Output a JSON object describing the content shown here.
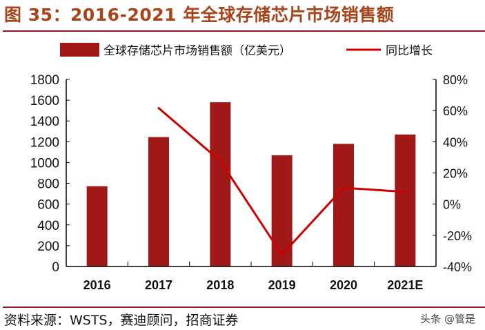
{
  "title": "图 35：2016-2021 年全球存储芯片市场销售额",
  "source": "资料来源：WSTS，赛迪顾问，招商证券",
  "watermark": "头条 @管是",
  "colors": {
    "bar": "#a01818",
    "line": "#cc0000",
    "title": "#a8441a"
  },
  "chart_data": {
    "type": "bar+line",
    "categories": [
      "2016",
      "2017",
      "2018",
      "2019",
      "2020",
      "2021E"
    ],
    "series": [
      {
        "name": "全球存储芯片市场销售额（亿美元）",
        "type": "bar",
        "axis": "left",
        "values": [
          772,
          1245,
          1580,
          1070,
          1180,
          1270
        ]
      },
      {
        "name": "同比增长",
        "type": "line",
        "axis": "right",
        "values": [
          null,
          61.6,
          27.7,
          -32.4,
          10.5,
          7.8
        ]
      }
    ],
    "left_axis": {
      "ylim": [
        0,
        1800
      ],
      "ticks": [
        "0",
        "200",
        "400",
        "600",
        "800",
        "1000",
        "1200",
        "1400",
        "1600",
        "1800"
      ]
    },
    "right_axis": {
      "ylim": [
        -40,
        80
      ],
      "unit": "%",
      "ticks": [
        "-40%",
        "-20%",
        "0%",
        "20%",
        "40%",
        "60%",
        "80%"
      ]
    },
    "legend": "top",
    "grid": false
  }
}
